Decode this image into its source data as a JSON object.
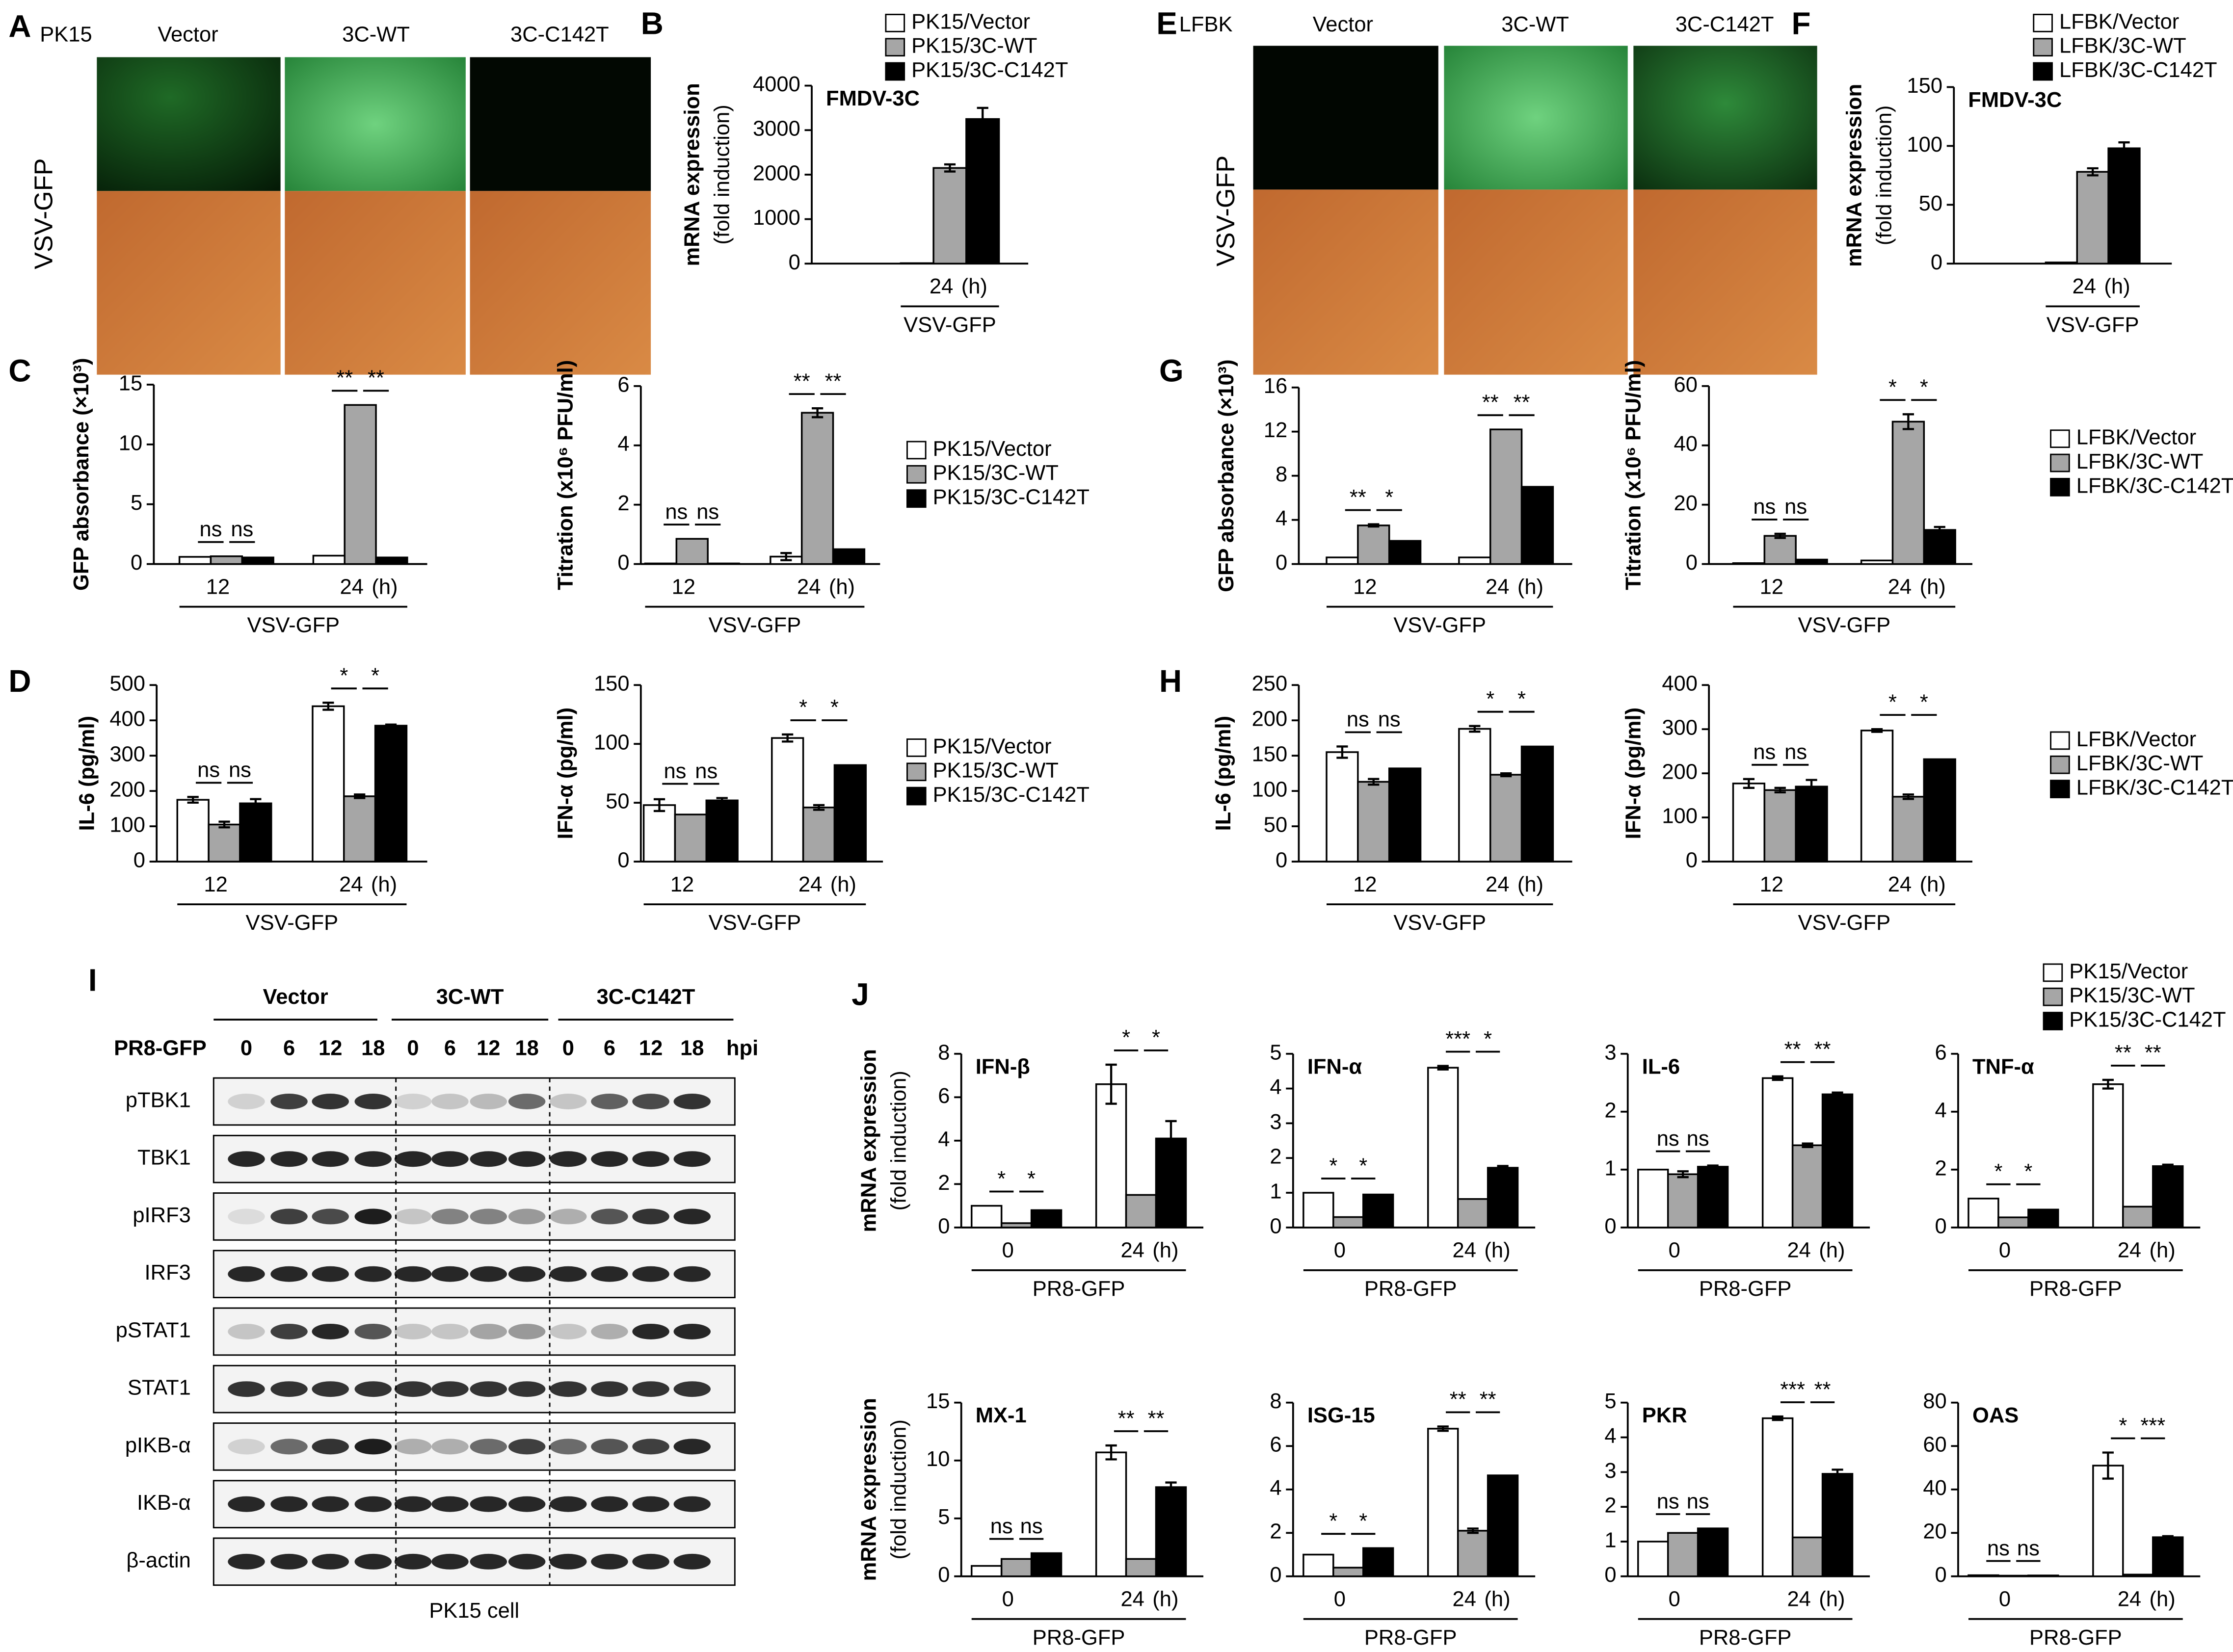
{
  "panels": [
    "A",
    "B",
    "C",
    "D",
    "E",
    "F",
    "G",
    "H",
    "I",
    "J"
  ],
  "microscopy": [
    {
      "cell": "PK15",
      "columns": [
        "Vector",
        "3C-WT",
        "3C-C142T"
      ],
      "row_label": "VSV-GFP"
    },
    {
      "cell": "LFBK",
      "columns": [
        "Vector",
        "3C-WT",
        "3C-C142T"
      ],
      "row_label": "VSV-GFP"
    }
  ],
  "western_blot": {
    "groups": [
      "Vector",
      "3C-WT",
      "3C-C142T"
    ],
    "treatment": "PR8-GFP",
    "timepoints": [
      "0",
      "6",
      "12",
      "18",
      "0",
      "6",
      "12",
      "18",
      "0",
      "6",
      "12",
      "18"
    ],
    "time_unit": "hpi",
    "rows": [
      "pTBK1",
      "TBK1",
      "pIRF3",
      "IRF3",
      "pSTAT1",
      "STAT1",
      "pIKB-α",
      "IKB-α",
      "β-actin"
    ],
    "caption": "PK15 cell"
  },
  "chart_data": [
    {
      "type": "bar",
      "title": "FMDV-3C",
      "ylabel": [
        "mRNA expression",
        "(fold induction)"
      ],
      "categories": [
        "24"
      ],
      "xunit": "(h)",
      "xgroup": "VSV-GFP",
      "ylim": [
        0,
        4000
      ],
      "yticks": [
        0,
        1000,
        2000,
        3000,
        4000
      ],
      "series": [
        {
          "name": "PK15/Vector",
          "color": "#ffffff",
          "values": [
            10
          ],
          "errors": [
            null
          ]
        },
        {
          "name": "PK15/3C-WT",
          "color": "#a6a6a6",
          "values": [
            2150
          ],
          "errors": [
            80
          ]
        },
        {
          "name": "PK15/3C-C142T",
          "color": "#000000",
          "values": [
            3250
          ],
          "errors": [
            250
          ]
        }
      ]
    },
    {
      "type": "bar",
      "title": "FMDV-3C",
      "ylabel": [
        "mRNA expression",
        "(fold induction)"
      ],
      "categories": [
        "24"
      ],
      "xunit": "(h)",
      "xgroup": "VSV-GFP",
      "ylim": [
        0,
        150
      ],
      "yticks": [
        0,
        50,
        100,
        150
      ],
      "series": [
        {
          "name": "LFBK/Vector",
          "color": "#ffffff",
          "values": [
            1
          ],
          "errors": [
            null
          ]
        },
        {
          "name": "LFBK/3C-WT",
          "color": "#a6a6a6",
          "values": [
            78
          ],
          "errors": [
            3
          ]
        },
        {
          "name": "LFBK/3C-C142T",
          "color": "#000000",
          "values": [
            98
          ],
          "errors": [
            5
          ]
        }
      ]
    },
    {
      "type": "bar",
      "ylabel": [
        "GFP absorbance (×10³)"
      ],
      "categories": [
        "12",
        "24"
      ],
      "xunit": "(h)",
      "xgroup": "VSV-GFP",
      "ylim": [
        0,
        15
      ],
      "yticks": [
        0,
        5,
        10,
        15
      ],
      "series": [
        {
          "color": "#ffffff",
          "values": [
            0.6,
            0.7
          ],
          "errors": [
            null,
            null
          ]
        },
        {
          "color": "#a6a6a6",
          "values": [
            0.65,
            13.3
          ],
          "errors": [
            null,
            null
          ]
        },
        {
          "color": "#000000",
          "values": [
            0.55,
            0.55
          ],
          "errors": [
            null,
            null
          ]
        }
      ],
      "significance": [
        [
          "ns",
          "ns"
        ],
        [
          "**",
          "**"
        ]
      ]
    },
    {
      "type": "bar",
      "ylabel": [
        "Titration (x10⁶ PFU/ml)"
      ],
      "categories": [
        "12",
        "24"
      ],
      "xunit": "(h)",
      "xgroup": "VSV-GFP",
      "ylim": [
        0,
        6
      ],
      "yticks": [
        0,
        2,
        4,
        6
      ],
      "series": [
        {
          "name": "PK15/Vector",
          "color": "#ffffff",
          "values": [
            0.02,
            0.25
          ],
          "errors": [
            null,
            0.12
          ]
        },
        {
          "name": "PK15/3C-WT",
          "color": "#a6a6a6",
          "values": [
            0.85,
            5.1
          ],
          "errors": [
            null,
            0.15
          ]
        },
        {
          "name": "PK15/3C-C142T",
          "color": "#000000",
          "values": [
            0.02,
            0.5
          ],
          "errors": [
            null,
            null
          ]
        }
      ],
      "significance": [
        [
          "ns",
          "ns"
        ],
        [
          "**",
          "**"
        ]
      ]
    },
    {
      "type": "bar",
      "ylabel": [
        "GFP absorbance (×10³)"
      ],
      "categories": [
        "12",
        "24"
      ],
      "xunit": "(h)",
      "xgroup": "VSV-GFP",
      "ylim": [
        0,
        16
      ],
      "yticks": [
        0,
        4,
        8,
        12,
        16
      ],
      "series": [
        {
          "color": "#ffffff",
          "values": [
            0.6,
            0.6
          ],
          "errors": [
            null,
            null
          ]
        },
        {
          "color": "#a6a6a6",
          "values": [
            3.5,
            12.2
          ],
          "errors": [
            0.1,
            null
          ]
        },
        {
          "color": "#000000",
          "values": [
            2.1,
            7.0
          ],
          "errors": [
            null,
            null
          ]
        }
      ],
      "significance": [
        [
          "**",
          "*"
        ],
        [
          "**",
          "**"
        ]
      ]
    },
    {
      "type": "bar",
      "ylabel": [
        "Titration (x10⁶ PFU/ml)"
      ],
      "categories": [
        "12",
        "24"
      ],
      "xunit": "(h)",
      "xgroup": "VSV-GFP",
      "ylim": [
        0,
        60
      ],
      "yticks": [
        0,
        20,
        40,
        60
      ],
      "series": [
        {
          "name": "LFBK/Vector",
          "color": "#ffffff",
          "values": [
            0.3,
            1.2
          ],
          "errors": [
            null,
            null
          ]
        },
        {
          "name": "LFBK/3C-WT",
          "color": "#a6a6a6",
          "values": [
            9.5,
            48
          ],
          "errors": [
            0.7,
            2.5
          ]
        },
        {
          "name": "LFBK/3C-C142T",
          "color": "#000000",
          "values": [
            1.5,
            11.5
          ],
          "errors": [
            null,
            1
          ]
        }
      ],
      "significance": [
        [
          "ns",
          "ns"
        ],
        [
          "*",
          "*"
        ]
      ]
    },
    {
      "type": "bar",
      "ylabel": [
        "IL-6 (pg/ml)"
      ],
      "categories": [
        "12",
        "24"
      ],
      "xunit": "(h)",
      "xgroup": "VSV-GFP",
      "ylim": [
        0,
        500
      ],
      "yticks": [
        0,
        100,
        200,
        300,
        400,
        500
      ],
      "series": [
        {
          "color": "#ffffff",
          "values": [
            175,
            440
          ],
          "errors": [
            8,
            10
          ]
        },
        {
          "color": "#a6a6a6",
          "values": [
            105,
            185
          ],
          "errors": [
            8,
            5
          ]
        },
        {
          "color": "#000000",
          "values": [
            165,
            385
          ],
          "errors": [
            12,
            3
          ]
        }
      ],
      "significance": [
        [
          "ns",
          "ns"
        ],
        [
          "*",
          "*"
        ]
      ]
    },
    {
      "type": "bar",
      "ylabel": [
        "IFN-α (pg/ml)"
      ],
      "categories": [
        "12",
        "24"
      ],
      "xunit": "(h)",
      "xgroup": "VSV-GFP",
      "ylim": [
        0,
        150
      ],
      "yticks": [
        0,
        50,
        100,
        150
      ],
      "series": [
        {
          "name": "PK15/Vector",
          "color": "#ffffff",
          "values": [
            48,
            105
          ],
          "errors": [
            5,
            3
          ]
        },
        {
          "name": "PK15/3C-WT",
          "color": "#a6a6a6",
          "values": [
            40,
            46
          ],
          "errors": [
            null,
            2
          ]
        },
        {
          "name": "PK15/3C-C142T",
          "color": "#000000",
          "values": [
            52,
            82
          ],
          "errors": [
            2,
            null
          ]
        }
      ],
      "significance": [
        [
          "ns",
          "ns"
        ],
        [
          "*",
          "*"
        ]
      ]
    },
    {
      "type": "bar",
      "ylabel": [
        "IL-6 (pg/ml)"
      ],
      "categories": [
        "12",
        "24"
      ],
      "xunit": "(h)",
      "xgroup": "VSV-GFP",
      "ylim": [
        0,
        250
      ],
      "yticks": [
        0,
        50,
        100,
        150,
        200,
        250
      ],
      "series": [
        {
          "color": "#ffffff",
          "values": [
            155,
            188
          ],
          "errors": [
            8,
            4
          ]
        },
        {
          "color": "#a6a6a6",
          "values": [
            113,
            123
          ],
          "errors": [
            4,
            2
          ]
        },
        {
          "color": "#000000",
          "values": [
            132,
            163
          ],
          "errors": [
            null,
            null
          ]
        }
      ],
      "significance": [
        [
          "ns",
          "ns"
        ],
        [
          "*",
          "*"
        ]
      ]
    },
    {
      "type": "bar",
      "ylabel": [
        "IFN-α (pg/ml)"
      ],
      "categories": [
        "12",
        "24"
      ],
      "xunit": "(h)",
      "xgroup": "VSV-GFP",
      "ylim": [
        0,
        400
      ],
      "yticks": [
        0,
        100,
        200,
        300,
        400
      ],
      "series": [
        {
          "name": "LFBK/Vector",
          "color": "#ffffff",
          "values": [
            177,
            297
          ],
          "errors": [
            10,
            3
          ]
        },
        {
          "name": "LFBK/3C-WT",
          "color": "#a6a6a6",
          "values": [
            162,
            147
          ],
          "errors": [
            5,
            5
          ]
        },
        {
          "name": "LFBK/3C-C142T",
          "color": "#000000",
          "values": [
            170,
            232
          ],
          "errors": [
            15,
            null
          ]
        }
      ],
      "significance": [
        [
          "ns",
          "ns"
        ],
        [
          "*",
          "*"
        ]
      ]
    },
    {
      "type": "bar",
      "title": "IFN-β",
      "ylabel": [
        "mRNA expression",
        "(fold induction)"
      ],
      "categories": [
        "0",
        "24"
      ],
      "xunit": "(h)",
      "xgroup": "PR8-GFP",
      "ylim": [
        0,
        8
      ],
      "yticks": [
        0,
        2,
        4,
        6,
        8
      ],
      "series": [
        {
          "name": "PK15/Vector",
          "color": "#ffffff",
          "values": [
            1,
            6.6
          ],
          "errors": [
            null,
            0.9
          ]
        },
        {
          "name": "PK15/3C-WT",
          "color": "#a6a6a6",
          "values": [
            0.2,
            1.5
          ],
          "errors": [
            null,
            null
          ]
        },
        {
          "name": "PK15/3C-C142T",
          "color": "#000000",
          "values": [
            0.8,
            4.1
          ],
          "errors": [
            null,
            0.8
          ]
        }
      ],
      "significance": [
        [
          "*",
          "*"
        ],
        [
          "*",
          "*"
        ]
      ]
    },
    {
      "type": "bar",
      "title": "IFN-α",
      "categories": [
        "0",
        "24"
      ],
      "xunit": "(h)",
      "xgroup": "PR8-GFP",
      "ylim": [
        0,
        5
      ],
      "yticks": [
        0,
        1,
        2,
        3,
        4,
        5
      ],
      "series": [
        {
          "color": "#ffffff",
          "values": [
            1,
            4.6
          ],
          "errors": [
            null,
            0.05
          ]
        },
        {
          "color": "#a6a6a6",
          "values": [
            0.3,
            0.82
          ],
          "errors": [
            null,
            null
          ]
        },
        {
          "color": "#000000",
          "values": [
            0.95,
            1.72
          ],
          "errors": [
            null,
            0.05
          ]
        }
      ],
      "significance": [
        [
          "*",
          "*"
        ],
        [
          "***",
          "*"
        ]
      ]
    },
    {
      "type": "bar",
      "title": "IL-6",
      "categories": [
        "0",
        "24"
      ],
      "xunit": "(h)",
      "xgroup": "PR8-GFP",
      "ylim": [
        0,
        3
      ],
      "yticks": [
        0,
        1,
        2,
        3
      ],
      "series": [
        {
          "color": "#ffffff",
          "values": [
            1,
            2.58
          ],
          "errors": [
            null,
            0.03
          ]
        },
        {
          "color": "#a6a6a6",
          "values": [
            0.92,
            1.42
          ],
          "errors": [
            0.05,
            0.03
          ]
        },
        {
          "color": "#000000",
          "values": [
            1.05,
            2.3
          ],
          "errors": [
            0.02,
            0.03
          ]
        }
      ],
      "significance": [
        [
          "ns",
          "ns"
        ],
        [
          "**",
          "**"
        ]
      ]
    },
    {
      "type": "bar",
      "title": "TNF-α",
      "categories": [
        "0",
        "24"
      ],
      "xunit": "(h)",
      "xgroup": "PR8-GFP",
      "ylim": [
        0,
        6
      ],
      "yticks": [
        0,
        2,
        4,
        6
      ],
      "series": [
        {
          "color": "#ffffff",
          "values": [
            1,
            4.95
          ],
          "errors": [
            null,
            0.15
          ]
        },
        {
          "color": "#a6a6a6",
          "values": [
            0.35,
            0.72
          ],
          "errors": [
            null,
            null
          ]
        },
        {
          "color": "#000000",
          "values": [
            0.62,
            2.12
          ],
          "errors": [
            null,
            0.05
          ]
        }
      ],
      "significance": [
        [
          "*",
          "*"
        ],
        [
          "**",
          "**"
        ]
      ]
    },
    {
      "type": "bar",
      "title": "MX-1",
      "ylabel": [
        "mRNA expression",
        "(fold induction)"
      ],
      "categories": [
        "0",
        "24"
      ],
      "xunit": "(h)",
      "xgroup": "PR8-GFP",
      "ylim": [
        0,
        15
      ],
      "yticks": [
        0,
        5,
        10,
        15
      ],
      "series": [
        {
          "color": "#ffffff",
          "values": [
            0.9,
            10.7
          ],
          "errors": [
            null,
            0.6
          ]
        },
        {
          "color": "#a6a6a6",
          "values": [
            1.5,
            1.5
          ],
          "errors": [
            null,
            null
          ]
        },
        {
          "color": "#000000",
          "values": [
            2.0,
            7.7
          ],
          "errors": [
            null,
            0.4
          ]
        }
      ],
      "significance": [
        [
          "ns",
          "ns"
        ],
        [
          "**",
          "**"
        ]
      ]
    },
    {
      "type": "bar",
      "title": "ISG-15",
      "categories": [
        "0",
        "24"
      ],
      "xunit": "(h)",
      "xgroup": "PR8-GFP",
      "ylim": [
        0,
        8
      ],
      "yticks": [
        0,
        2,
        4,
        6,
        8
      ],
      "series": [
        {
          "color": "#ffffff",
          "values": [
            1,
            6.8
          ],
          "errors": [
            null,
            0.1
          ]
        },
        {
          "color": "#a6a6a6",
          "values": [
            0.4,
            2.1
          ],
          "errors": [
            null,
            0.1
          ]
        },
        {
          "color": "#000000",
          "values": [
            1.3,
            4.65
          ],
          "errors": [
            null,
            null
          ]
        }
      ],
      "significance": [
        [
          "*",
          "*"
        ],
        [
          "**",
          "**"
        ]
      ]
    },
    {
      "type": "bar",
      "title": "PKR",
      "categories": [
        "0",
        "24"
      ],
      "xunit": "(h)",
      "xgroup": "PR8-GFP",
      "ylim": [
        0,
        5
      ],
      "yticks": [
        0,
        1,
        2,
        3,
        4,
        5
      ],
      "series": [
        {
          "color": "#ffffff",
          "values": [
            1,
            4.55
          ],
          "errors": [
            null,
            0.05
          ]
        },
        {
          "color": "#a6a6a6",
          "values": [
            1.25,
            1.12
          ],
          "errors": [
            null,
            null
          ]
        },
        {
          "color": "#000000",
          "values": [
            1.38,
            2.95
          ],
          "errors": [
            null,
            0.12
          ]
        }
      ],
      "significance": [
        [
          "ns",
          "ns"
        ],
        [
          "***",
          "**"
        ]
      ]
    },
    {
      "type": "bar",
      "title": "OAS",
      "categories": [
        "0",
        "24"
      ],
      "xunit": "(h)",
      "xgroup": "PR8-GFP",
      "ylim": [
        0,
        80
      ],
      "yticks": [
        0,
        20,
        40,
        60,
        80
      ],
      "series": [
        {
          "color": "#ffffff",
          "values": [
            0.5,
            51
          ],
          "errors": [
            null,
            6
          ]
        },
        {
          "color": "#a6a6a6",
          "values": [
            0.3,
            0.8
          ],
          "errors": [
            null,
            null
          ]
        },
        {
          "color": "#000000",
          "values": [
            0.4,
            18
          ],
          "errors": [
            null,
            0.5
          ]
        }
      ],
      "significance": [
        [
          "ns",
          "ns"
        ],
        [
          "*",
          "***"
        ]
      ]
    }
  ]
}
